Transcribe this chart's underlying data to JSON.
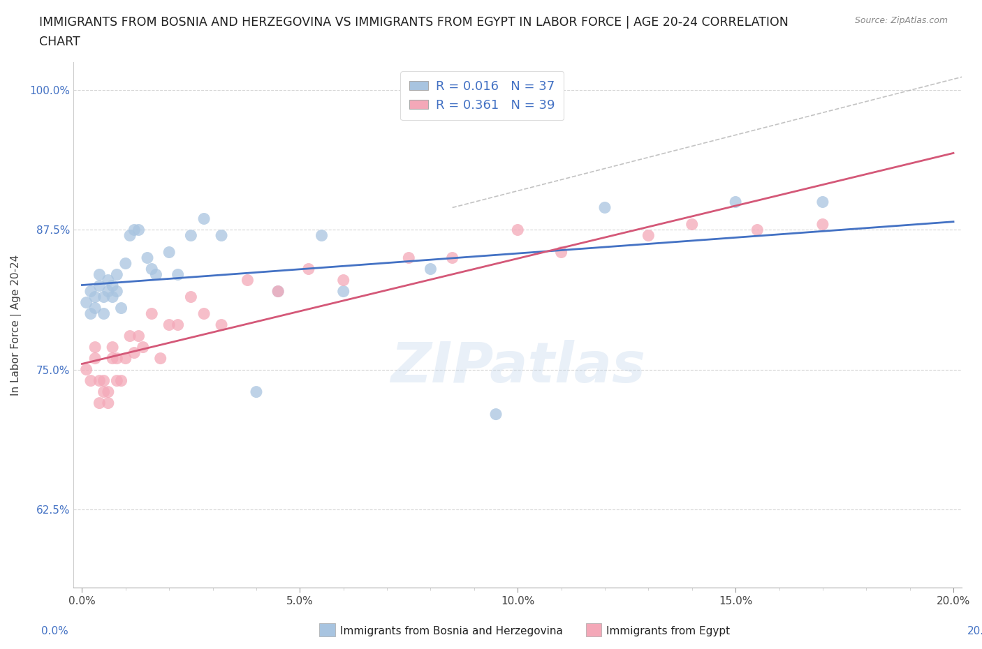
{
  "title_line1": "IMMIGRANTS FROM BOSNIA AND HERZEGOVINA VS IMMIGRANTS FROM EGYPT IN LABOR FORCE | AGE 20-24 CORRELATION",
  "title_line2": "CHART",
  "source": "Source: ZipAtlas.com",
  "xlabel_bosnia": "Immigrants from Bosnia and Herzegovina",
  "xlabel_egypt": "Immigrants from Egypt",
  "ylabel": "In Labor Force | Age 20-24",
  "xlim": [
    -0.002,
    0.202
  ],
  "ylim": [
    0.555,
    1.025
  ],
  "yticks": [
    0.625,
    0.75,
    0.875,
    1.0
  ],
  "ytick_labels": [
    "62.5%",
    "75.0%",
    "87.5%",
    "100.0%"
  ],
  "xticks": [
    0.0,
    0.05,
    0.1,
    0.15,
    0.2
  ],
  "xtick_labels": [
    "0.0%",
    "5.0%",
    "10.0%",
    "15.0%",
    "20.0%"
  ],
  "R_bosnia": 0.016,
  "N_bosnia": 37,
  "R_egypt": 0.361,
  "N_egypt": 39,
  "legend_color_bosnia": "#a8c4e0",
  "legend_color_egypt": "#f4a8b8",
  "trend_color_bosnia": "#4472c4",
  "trend_color_egypt": "#d45878",
  "scatter_color_bosnia": "#a8c4e0",
  "scatter_color_egypt": "#f4a8b8",
  "watermark": "ZIPatlas",
  "background_color": "#ffffff",
  "grid_color": "#cccccc",
  "bosnia_x": [
    0.001,
    0.002,
    0.002,
    0.003,
    0.003,
    0.004,
    0.004,
    0.005,
    0.005,
    0.006,
    0.006,
    0.007,
    0.007,
    0.008,
    0.008,
    0.009,
    0.01,
    0.011,
    0.012,
    0.013,
    0.015,
    0.016,
    0.017,
    0.02,
    0.022,
    0.025,
    0.028,
    0.032,
    0.04,
    0.045,
    0.055,
    0.06,
    0.08,
    0.095,
    0.12,
    0.15,
    0.17
  ],
  "bosnia_y": [
    0.81,
    0.8,
    0.82,
    0.805,
    0.815,
    0.825,
    0.835,
    0.8,
    0.815,
    0.82,
    0.83,
    0.815,
    0.825,
    0.835,
    0.82,
    0.805,
    0.845,
    0.87,
    0.875,
    0.875,
    0.85,
    0.84,
    0.835,
    0.855,
    0.835,
    0.87,
    0.885,
    0.87,
    0.73,
    0.82,
    0.87,
    0.82,
    0.84,
    0.71,
    0.895,
    0.9,
    0.9
  ],
  "egypt_x": [
    0.001,
    0.002,
    0.003,
    0.003,
    0.004,
    0.004,
    0.005,
    0.005,
    0.006,
    0.006,
    0.007,
    0.007,
    0.008,
    0.008,
    0.009,
    0.01,
    0.011,
    0.012,
    0.013,
    0.014,
    0.016,
    0.018,
    0.02,
    0.022,
    0.025,
    0.028,
    0.032,
    0.038,
    0.045,
    0.052,
    0.06,
    0.075,
    0.085,
    0.1,
    0.11,
    0.13,
    0.14,
    0.155,
    0.17
  ],
  "egypt_y": [
    0.75,
    0.74,
    0.76,
    0.77,
    0.72,
    0.74,
    0.73,
    0.74,
    0.73,
    0.72,
    0.76,
    0.77,
    0.74,
    0.76,
    0.74,
    0.76,
    0.78,
    0.765,
    0.78,
    0.77,
    0.8,
    0.76,
    0.79,
    0.79,
    0.815,
    0.8,
    0.79,
    0.83,
    0.82,
    0.84,
    0.83,
    0.85,
    0.85,
    0.875,
    0.855,
    0.87,
    0.88,
    0.875,
    0.88
  ],
  "ref_line_x": [
    0.085,
    0.205
  ],
  "ref_line_y": [
    0.895,
    1.015
  ]
}
